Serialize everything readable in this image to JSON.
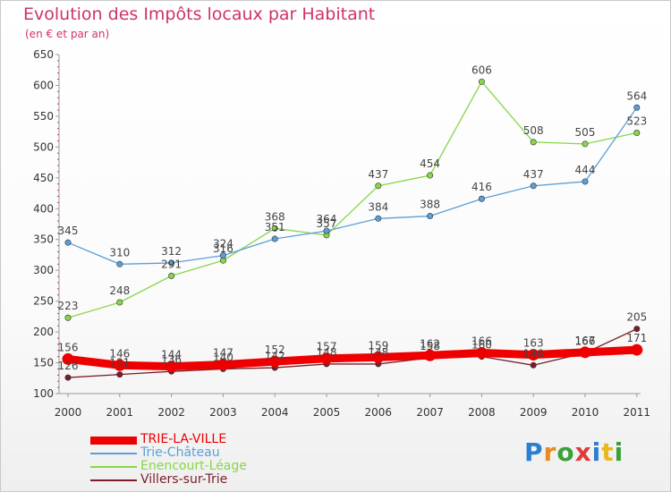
{
  "title": "Evolution des Impôts locaux par Habitant",
  "subtitle": "(en € et par an)",
  "logo": {
    "letters": [
      "P",
      "r",
      "o",
      "x",
      "i",
      "t",
      "i"
    ],
    "colors": [
      "#2a7fd1",
      "#e88a1e",
      "#3aa13a",
      "#e03a3a",
      "#2a7fd1",
      "#e8b81e",
      "#3aa13a"
    ]
  },
  "chart_data": {
    "type": "line",
    "x": [
      "2000",
      "2001",
      "2002",
      "2003",
      "2004",
      "2005",
      "2006",
      "2007",
      "2008",
      "2009",
      "2010",
      "2011"
    ],
    "ylim": [
      100,
      650
    ],
    "yticks": [
      "100",
      "150",
      "200",
      "250",
      "300",
      "350",
      "400",
      "450",
      "500",
      "550",
      "600",
      "650"
    ],
    "grid": false,
    "legend": "bottom-left",
    "series": [
      {
        "name": "TRIE-LA-VILLE",
        "color": "#ee0000",
        "values": [
          156,
          146,
          144,
          147,
          152,
          157,
          159,
          162,
          166,
          163,
          167,
          171
        ]
      },
      {
        "name": "Trie-Château",
        "color": "#5b9fd6",
        "values": [
          345,
          310,
          312,
          324,
          351,
          364,
          384,
          388,
          416,
          437,
          444,
          564
        ]
      },
      {
        "name": "Enencourt-Léage",
        "color": "#88d64a",
        "values": [
          223,
          248,
          291,
          316,
          368,
          357,
          437,
          454,
          606,
          508,
          505,
          523
        ]
      },
      {
        "name": "Villers-sur-Trie",
        "color": "#7a1e2a",
        "values": [
          126,
          131,
          136,
          140,
          142,
          148,
          148,
          158,
          160,
          146,
          166,
          205
        ]
      }
    ]
  }
}
